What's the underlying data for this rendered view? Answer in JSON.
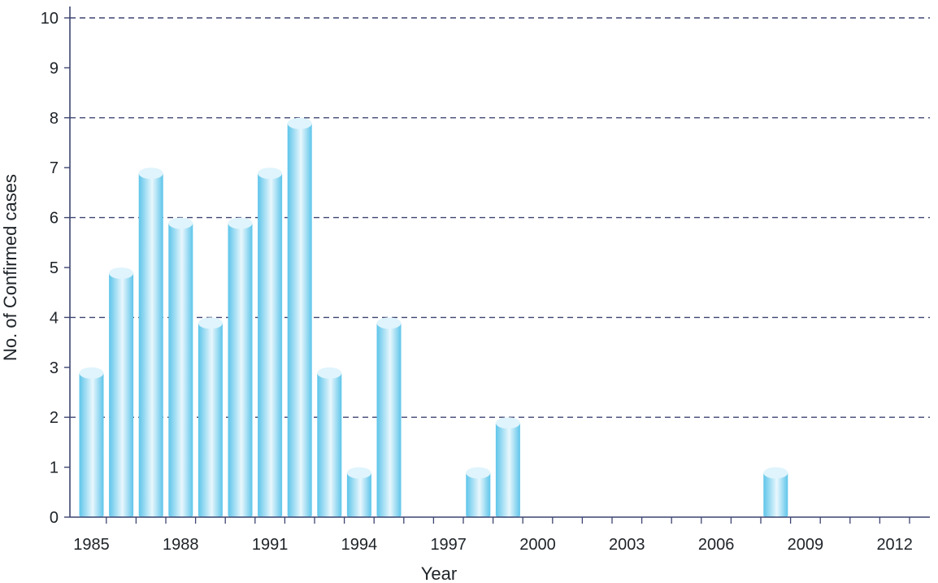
{
  "chart_data": {
    "type": "bar",
    "title": "",
    "xlabel": "Year",
    "ylabel": "No. of Confirmed cases",
    "ylim": [
      0,
      10
    ],
    "yticks": [
      0,
      1,
      2,
      3,
      4,
      5,
      6,
      7,
      8,
      9,
      10
    ],
    "gridlines_at": [
      2,
      4,
      6,
      8,
      10
    ],
    "grid": true,
    "x_range": [
      1985,
      2013
    ],
    "x_tick_labels": [
      "1985",
      "1988",
      "1991",
      "1994",
      "1997",
      "2000",
      "2003",
      "2006",
      "2009",
      "2012"
    ],
    "categories": [
      "1985",
      "1986",
      "1987",
      "1988",
      "1989",
      "1990",
      "1991",
      "1992",
      "1993",
      "1994",
      "1995",
      "1996",
      "1997",
      "1998",
      "1999",
      "2000",
      "2001",
      "2002",
      "2003",
      "2004",
      "2005",
      "2006",
      "2007",
      "2008",
      "2009",
      "2010",
      "2011",
      "2012",
      "2013"
    ],
    "values": [
      3,
      5,
      7,
      6,
      4,
      6,
      7,
      8,
      3,
      1,
      4,
      0,
      0,
      1,
      2,
      0,
      0,
      0,
      0,
      0,
      0,
      0,
      0,
      1,
      0,
      0,
      0,
      0,
      0
    ],
    "colors": {
      "bar_edge": "#5ec5ea",
      "bar_center": "#e8f7fd",
      "bar_top": "#dff4fc",
      "grid": "#3d4570",
      "axis": "#3d4570",
      "text": "#1e2328"
    }
  }
}
